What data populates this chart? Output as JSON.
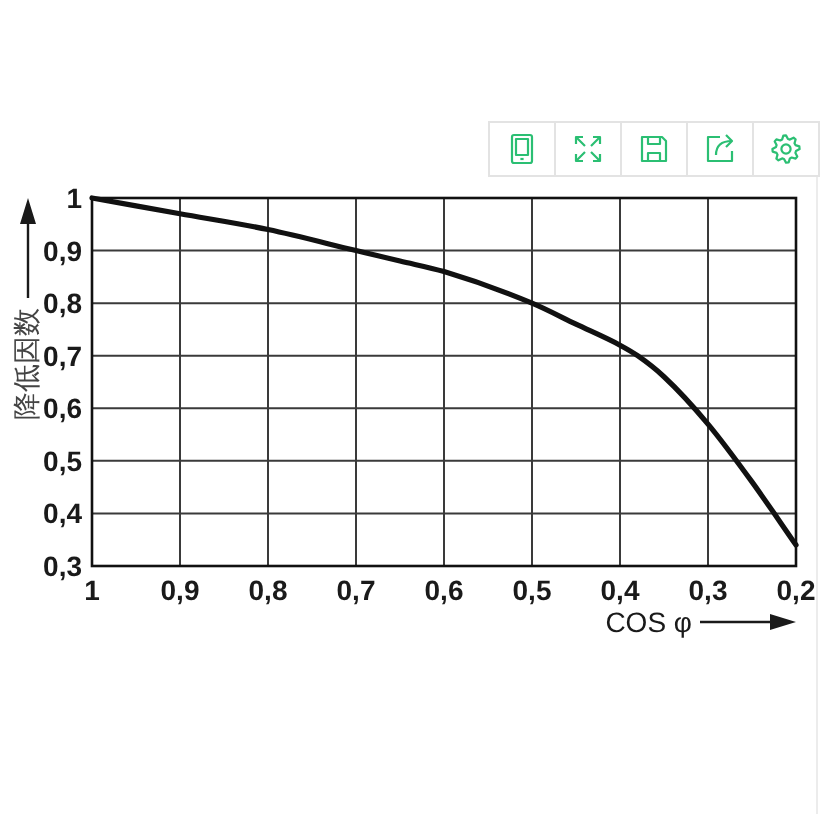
{
  "chart_data": {
    "type": "line",
    "xlabel": "COS φ",
    "ylabel": "降低因数",
    "x": [
      1,
      0.9,
      0.8,
      0.7,
      0.65,
      0.6,
      0.5,
      0.45,
      0.4,
      0.38,
      0.35,
      0.3,
      0.25,
      0.2
    ],
    "values": [
      1,
      0.97,
      0.94,
      0.9,
      0.88,
      0.86,
      0.8,
      0.76,
      0.72,
      0.7,
      0.66,
      0.57,
      0.46,
      0.34
    ],
    "color": "#111111",
    "xlim": [
      1,
      0.2
    ],
    "ylim": [
      0.3,
      1
    ],
    "xticks": [
      1,
      {
        "value": 0.9,
        "label": "0,9"
      },
      {
        "value": 0.8,
        "label": "0,8"
      },
      {
        "value": 0.7,
        "label": "0,7"
      },
      {
        "value": 0.6,
        "label": "0,6"
      },
      {
        "value": 0.5,
        "label": "0,5"
      },
      {
        "value": 0.4,
        "label": "0,4"
      },
      {
        "value": 0.3,
        "label": "0,3"
      },
      {
        "value": 0.2,
        "label": "0,2"
      }
    ],
    "yticks": [
      {
        "value": 0.3,
        "label": "0,3"
      },
      {
        "value": 0.4,
        "label": "0,4"
      },
      {
        "value": 0.5,
        "label": "0,5"
      },
      {
        "value": 0.6,
        "label": "0,6"
      },
      {
        "value": 0.7,
        "label": "0,7"
      },
      {
        "value": 0.8,
        "label": "0,8"
      },
      {
        "value": 0.9,
        "label": "0,9"
      },
      1
    ],
    "grid": true
  }
}
